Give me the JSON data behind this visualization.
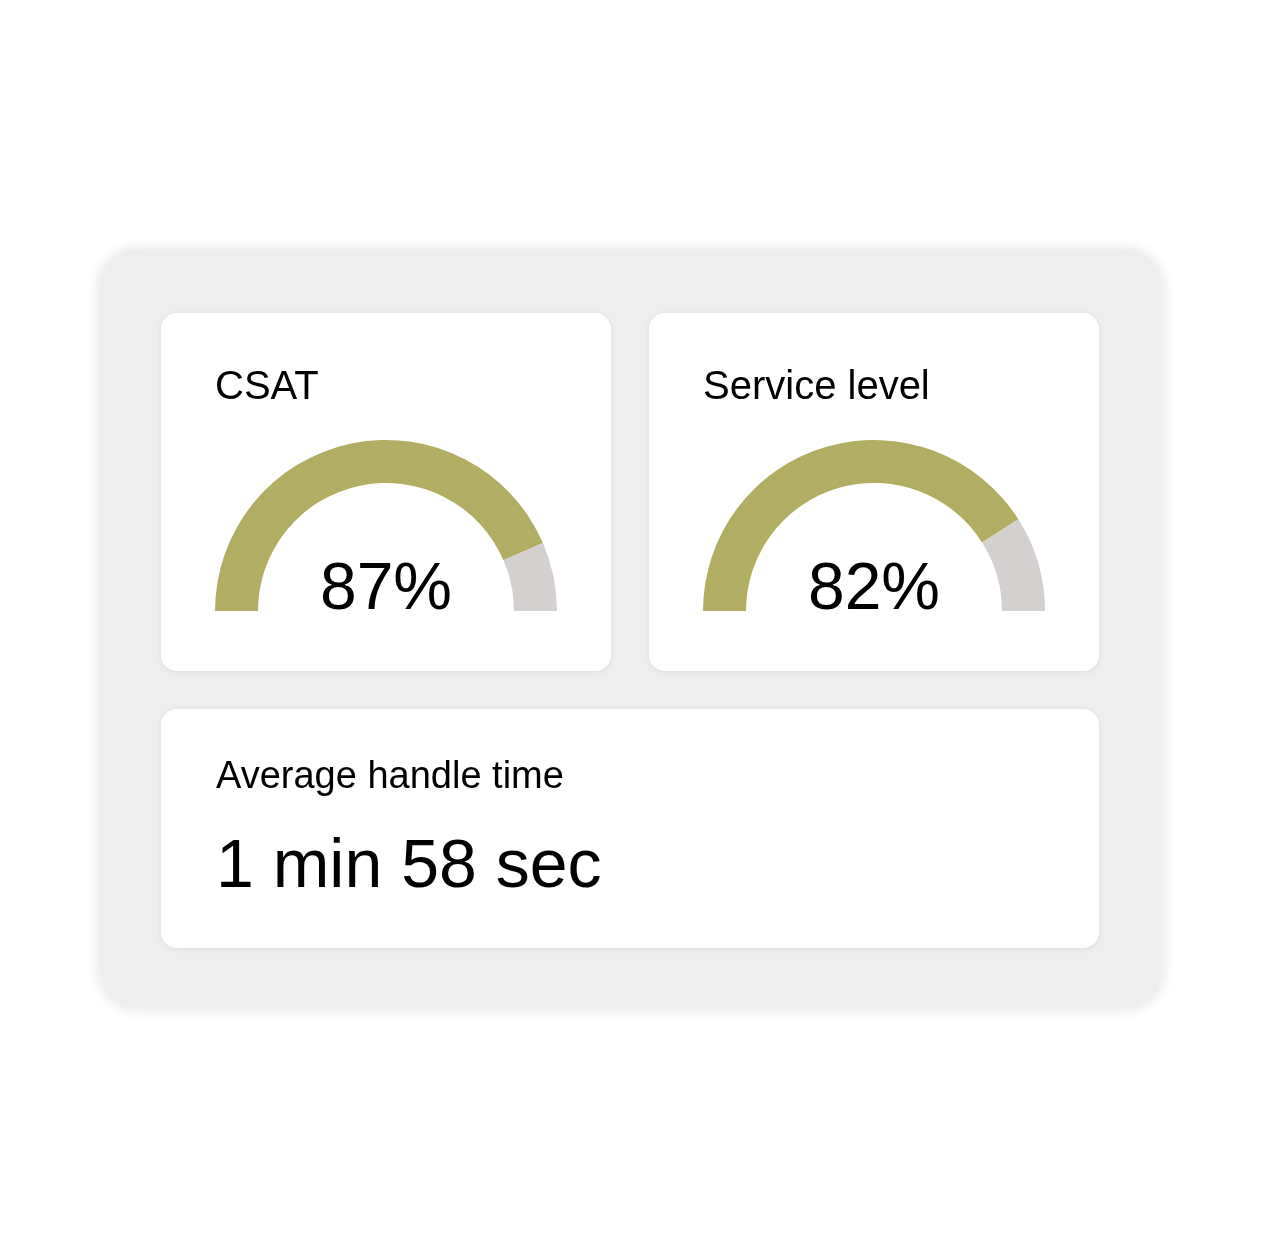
{
  "chart_data": [
    {
      "type": "donut",
      "title": "CSAT",
      "categories": [
        null,
        null
      ],
      "values": [
        87,
        13
      ],
      "colors": [
        "#b1ad62",
        "#d4d0cf"
      ],
      "annotations": [
        "87%"
      ]
    },
    {
      "type": "donut",
      "title": "Service level",
      "categories": [
        null,
        null
      ],
      "values": [
        82,
        18
      ],
      "colors": [
        "#b1ad62",
        "#d4d0cf"
      ],
      "annotations": [
        "82%"
      ]
    },
    {
      "type": "other",
      "title": "Average handle time",
      "annotations": [
        "1 min 58 sec"
      ]
    }
  ]
}
